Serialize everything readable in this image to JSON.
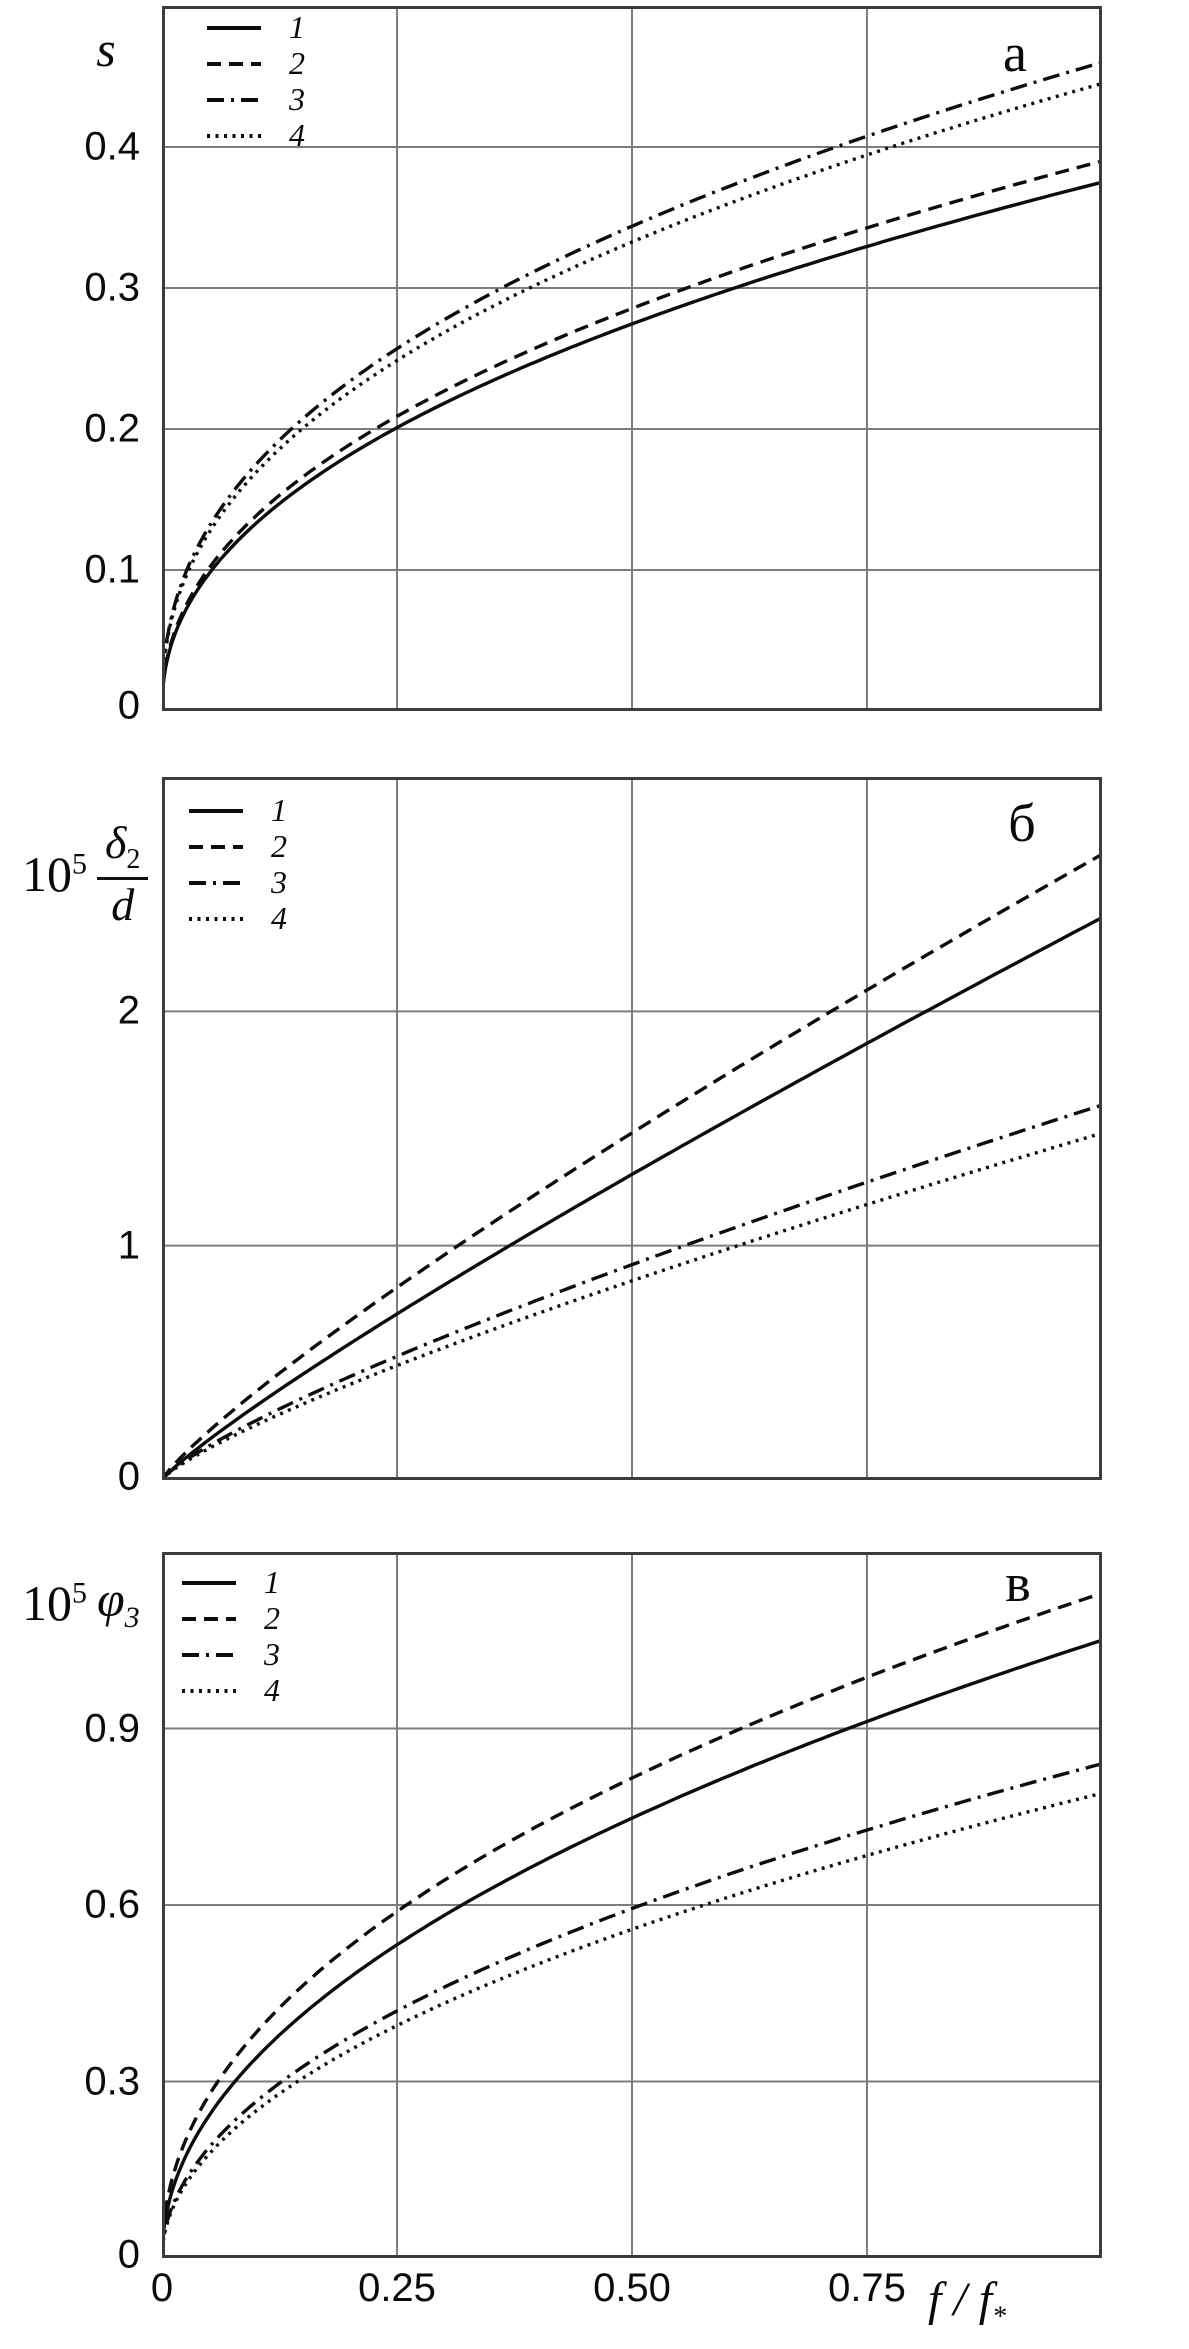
{
  "figure": {
    "background": "#ffffff",
    "curve_color": "#0d0d0d",
    "grid_color": "#7d7d7d",
    "frame_color": "#3c3c3c",
    "x_axis": {
      "xlabel": "f / f∗",
      "label_parts": {
        "f1": "f",
        "slash": "/",
        "f2": "f",
        "sub": "*"
      },
      "range": [
        0,
        1
      ],
      "ticks": [
        {
          "v": 0,
          "label": "0"
        },
        {
          "v": 0.25,
          "label": "0.25"
        },
        {
          "v": 0.5,
          "label": "0.50"
        },
        {
          "v": 0.75,
          "label": "0.75"
        }
      ]
    },
    "legend_items": [
      {
        "label": "1",
        "style": "solid"
      },
      {
        "label": "2",
        "style": "dashed"
      },
      {
        "label": "3",
        "style": "dashdot"
      },
      {
        "label": "4",
        "style": "dotted"
      }
    ]
  },
  "chart_data": [
    {
      "type": "line",
      "panel_label": "а",
      "ylabel": "s",
      "xlabel": "f / f∗",
      "x_range": [
        0,
        1
      ],
      "y_range": [
        0,
        0.5
      ],
      "grid": true,
      "legend_position": "top-left",
      "yticks": [
        {
          "v": 0,
          "label": "0"
        },
        {
          "v": 0.1,
          "label": "0.1"
        },
        {
          "v": 0.2,
          "label": "0.2"
        },
        {
          "v": 0.3,
          "label": "0.3"
        },
        {
          "v": 0.4,
          "label": "0.4"
        }
      ],
      "series": [
        {
          "name": "1",
          "style": "solid",
          "power_model": {
            "amplitude": 0.375,
            "exponent": 0.45
          },
          "x": [
            0,
            0.25,
            0.5,
            0.75,
            1
          ],
          "y": [
            0,
            0.2,
            0.27,
            0.33,
            0.375
          ]
        },
        {
          "name": "2",
          "style": "dashed",
          "power_model": {
            "amplitude": 0.39,
            "exponent": 0.45
          },
          "x": [
            0,
            0.25,
            0.5,
            0.75,
            1
          ],
          "y": [
            0,
            0.21,
            0.29,
            0.34,
            0.39
          ]
        },
        {
          "name": "3",
          "style": "dashdot",
          "power_model": {
            "amplitude": 0.46,
            "exponent": 0.42
          },
          "x": [
            0,
            0.25,
            0.5,
            0.75,
            1
          ],
          "y": [
            0,
            0.26,
            0.34,
            0.41,
            0.46
          ]
        },
        {
          "name": "4",
          "style": "dotted",
          "power_model": {
            "amplitude": 0.445,
            "exponent": 0.42
          },
          "x": [
            0,
            0.25,
            0.5,
            0.75,
            1
          ],
          "y": [
            0,
            0.25,
            0.33,
            0.39,
            0.445
          ]
        }
      ]
    },
    {
      "type": "line",
      "panel_label": "б",
      "ylabel": "10⁵ δ₂/d",
      "ylabel_parts": {
        "coef": "10",
        "exp": "5",
        "num_base": "δ",
        "num_sub": "2",
        "den": "d"
      },
      "xlabel": "f / f∗",
      "x_range": [
        0,
        1
      ],
      "y_range": [
        0,
        3
      ],
      "grid": true,
      "legend_position": "top-left",
      "yticks": [
        {
          "v": 0,
          "label": "0"
        },
        {
          "v": 1,
          "label": "1"
        },
        {
          "v": 2,
          "label": "2"
        }
      ],
      "series": [
        {
          "name": "1",
          "style": "solid",
          "power_model": {
            "amplitude": 2.4,
            "exponent": 0.88
          },
          "x": [
            0,
            0.25,
            0.5,
            0.75,
            1
          ],
          "y": [
            0,
            0.71,
            1.3,
            1.86,
            2.4
          ]
        },
        {
          "name": "2",
          "style": "dashed",
          "power_model": {
            "amplitude": 2.67,
            "exponent": 0.85
          },
          "x": [
            0,
            0.25,
            0.5,
            0.75,
            1
          ],
          "y": [
            0,
            0.82,
            1.48,
            2.09,
            2.67
          ]
        },
        {
          "name": "3",
          "style": "dashdot",
          "power_model": {
            "amplitude": 1.6,
            "exponent": 0.8
          },
          "x": [
            0,
            0.25,
            0.5,
            0.75,
            1
          ],
          "y": [
            0,
            0.53,
            0.92,
            1.27,
            1.6
          ]
        },
        {
          "name": "4",
          "style": "dotted",
          "power_model": {
            "amplitude": 1.48,
            "exponent": 0.8
          },
          "x": [
            0,
            0.25,
            0.5,
            0.75,
            1
          ],
          "y": [
            0,
            0.49,
            0.85,
            1.18,
            1.48
          ]
        }
      ]
    },
    {
      "type": "line",
      "panel_label": "в",
      "ylabel": "10⁵ φ₃",
      "ylabel_parts": {
        "coef": "10",
        "exp": "5",
        "base": "φ",
        "sub": "3"
      },
      "xlabel": "f / f∗",
      "x_range": [
        0,
        1
      ],
      "y_range": [
        0,
        1.2
      ],
      "grid": true,
      "legend_position": "top-left",
      "yticks": [
        {
          "v": 0,
          "label": "0"
        },
        {
          "v": 0.3,
          "label": "0.3"
        },
        {
          "v": 0.6,
          "label": "0.6"
        },
        {
          "v": 0.9,
          "label": "0.9"
        }
      ],
      "series": [
        {
          "name": "1",
          "style": "solid",
          "power_model": {
            "amplitude": 1.05,
            "exponent": 0.49
          },
          "x": [
            0,
            0.25,
            0.5,
            0.75,
            1
          ],
          "y": [
            0,
            0.53,
            0.75,
            0.91,
            1.05
          ]
        },
        {
          "name": "2",
          "style": "dashed",
          "power_model": {
            "amplitude": 1.13,
            "exponent": 0.47
          },
          "x": [
            0,
            0.25,
            0.5,
            0.75,
            1
          ],
          "y": [
            0,
            0.59,
            0.82,
            0.99,
            1.13
          ]
        },
        {
          "name": "3",
          "style": "dashdot",
          "power_model": {
            "amplitude": 0.84,
            "exponent": 0.5
          },
          "x": [
            0,
            0.25,
            0.5,
            0.75,
            1
          ],
          "y": [
            0,
            0.42,
            0.59,
            0.73,
            0.84
          ]
        },
        {
          "name": "4",
          "style": "dotted",
          "power_model": {
            "amplitude": 0.79,
            "exponent": 0.5
          },
          "x": [
            0,
            0.25,
            0.5,
            0.75,
            1
          ],
          "y": [
            0,
            0.4,
            0.56,
            0.68,
            0.79
          ]
        }
      ]
    }
  ]
}
